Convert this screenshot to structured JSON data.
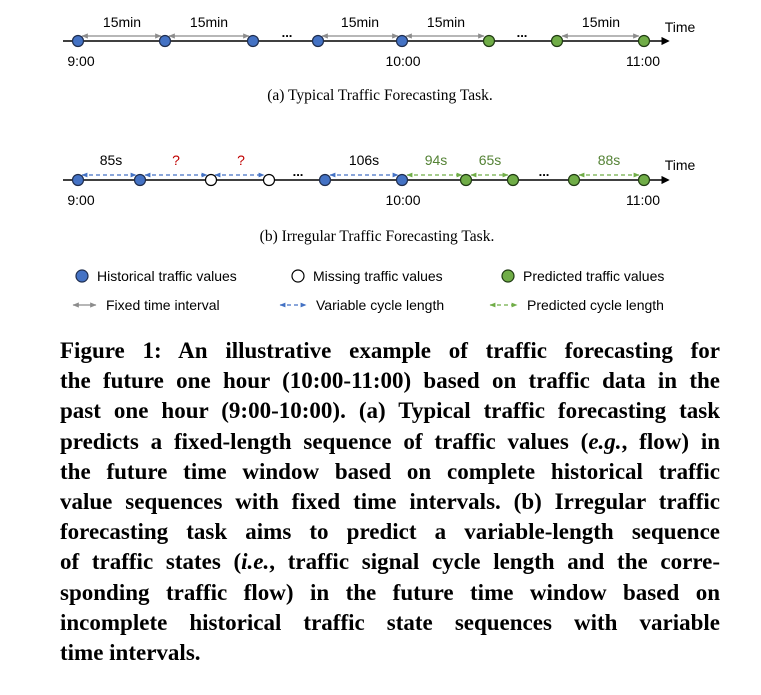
{
  "colors": {
    "historical": "#4472C4",
    "predicted": "#70AD47",
    "missing": "#ffffff",
    "fixed_arrow": "#8c8c8c",
    "variable_arrow": "#4472C4",
    "predicted_arrow": "#70AD47",
    "unknown_label": "#C00000",
    "predicted_label": "#548235"
  },
  "panel_a": {
    "axis_label": "Time",
    "interval_labels": [
      "15min",
      "15min",
      "15min",
      "15min",
      "15min"
    ],
    "time_labels": [
      "9:00",
      "10:00",
      "11:00"
    ],
    "ellipsis": "...",
    "subtitle": "(a) Typical Traffic Forecasting Task."
  },
  "panel_b": {
    "axis_label": "Time",
    "interval_labels": [
      "85s",
      "?",
      "?",
      "106s",
      "94s",
      "65s",
      "88s"
    ],
    "time_labels": [
      "9:00",
      "10:00",
      "11:00"
    ],
    "ellipsis": "...",
    "subtitle": "(b) Irregular Traffic Forecasting Task."
  },
  "legend": {
    "historical": "Historical traffic values",
    "missing": "Missing traffic values",
    "predicted": "Predicted traffic values",
    "fixed": "Fixed time interval",
    "variable": "Variable cycle length",
    "predicted_cycle": "Predicted cycle length"
  },
  "caption": {
    "l1": "Figure 1: An illustrative example of traffic forecasting for",
    "l2": "the future one hour (10:00-11:00) based on traffic data in the",
    "l3": "past one hour (9:00-10:00). (a) Typical traffic forecasting task",
    "l4a": "predicts a fixed-length sequence of traffic values (",
    "l4b": "e.g.",
    "l4c": ", flow) in",
    "l5": "the future time window based on complete historical traffic",
    "l6": "value sequences with fixed time intervals. (b) Irregular traffic",
    "l7": "forecasting task aims to predict a variable-length sequence",
    "l8a": "of traffic states (",
    "l8b": "i.e.",
    "l8c": ", traffic signal cycle length and the corre-",
    "l9": "sponding traffic flow) in the future time window based on",
    "l10": "incomplete historical traffic state sequences with variable",
    "l11": "time intervals."
  }
}
